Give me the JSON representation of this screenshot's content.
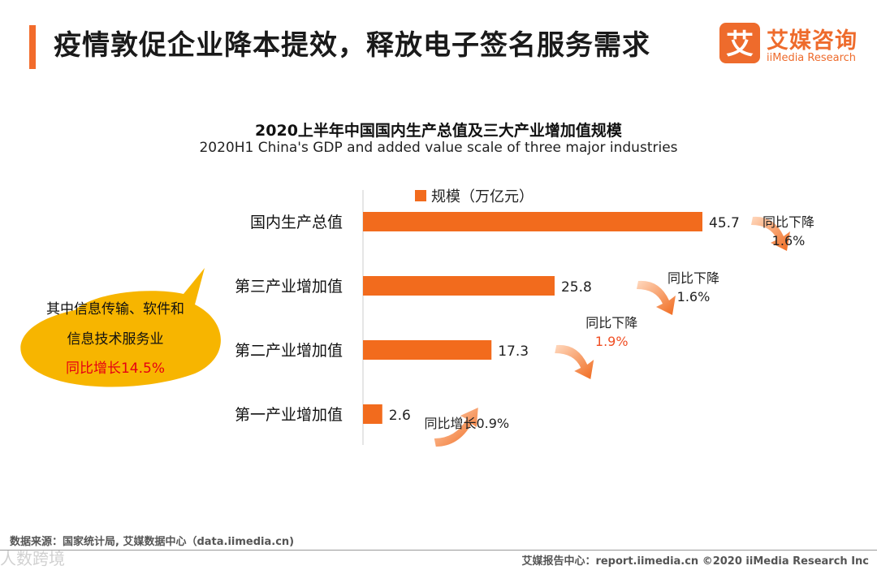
{
  "header": {
    "title": "疫情敦促企业降本提效，释放电子签名服务需求",
    "logo": {
      "mark_glyph": "艾",
      "name_cn": "艾媒咨询",
      "name_en": "iiMedia Research"
    }
  },
  "chart_data": {
    "type": "bar",
    "orientation": "horizontal",
    "title": "2020上半年中国国内生产总值及三大产业增加值规模",
    "subtitle": "2020H1 China's GDP and added value scale of three major industries",
    "legend": "规模（万亿元）",
    "categories": [
      "国内生产总值",
      "第三产业增加值",
      "第二产业增加值",
      "第一产业增加值"
    ],
    "values": [
      45.7,
      25.8,
      17.3,
      2.6
    ],
    "value_labels": [
      "45.7",
      "25.8",
      "17.3",
      "2.6"
    ],
    "xlim": [
      0,
      45.7
    ],
    "bar_color": "#f26b1d",
    "annotations": [
      {
        "line1": "同比下降",
        "line2": "1.6%",
        "direction": "down",
        "highlight": false
      },
      {
        "line1": "同比下降",
        "line2": "1.6%",
        "direction": "down",
        "highlight": false
      },
      {
        "line1": "同比下降",
        "line2": "1.9%",
        "direction": "down",
        "highlight": true
      },
      {
        "line1": "同比增长0.9%",
        "line2": "",
        "direction": "up",
        "highlight": false
      }
    ],
    "callout": {
      "line1": "其中信息传输、软件和",
      "line2": "信息技术服务业",
      "line3": "同比增长14.5%"
    }
  },
  "footer": {
    "source": "数据来源：国家统计局, 艾媒数据中心（data.iimedia.cn)",
    "right": "艾媒报告中心：report.iimedia.cn   ©2020  iiMedia Research  Inc",
    "watermark": "人数跨境"
  },
  "colors": {
    "accent": "#f26b2b",
    "bar": "#f26b1d",
    "callout": "#f7b500",
    "highlight_text": "#f04e23",
    "callout_red": "#e60012"
  }
}
